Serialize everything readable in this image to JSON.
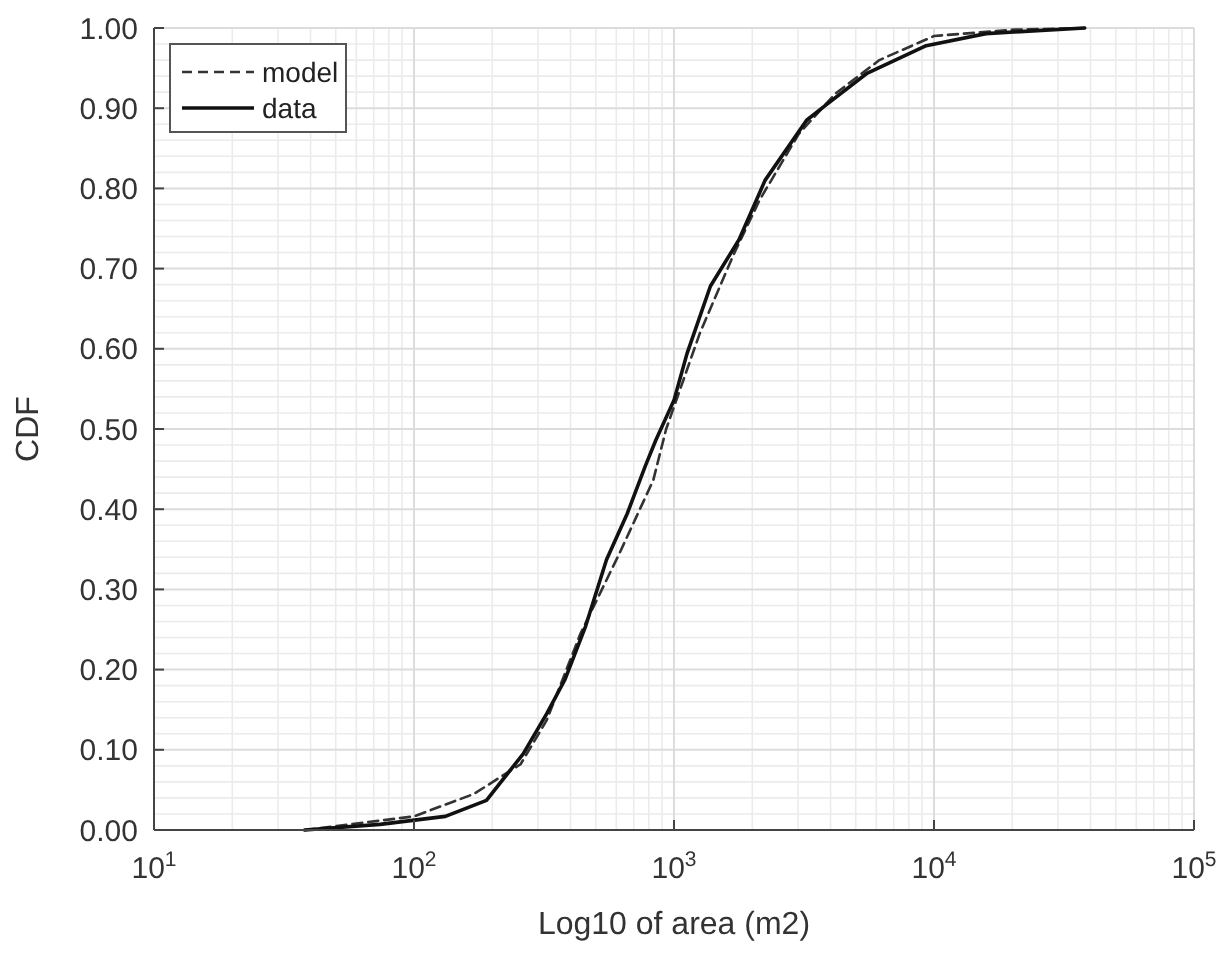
{
  "chart_data": {
    "type": "line",
    "xlabel": "Log10 of area (m2)",
    "ylabel": "CDF",
    "log": "x",
    "grid": true,
    "legend": "top left",
    "xlim": [
      10,
      100000
    ],
    "xticks": [
      {
        "value": 10,
        "label": "10$^{1}$"
      },
      {
        "value": 100,
        "label": "10$^{2}$"
      },
      {
        "value": 1000,
        "label": "10$^{3}$"
      },
      {
        "value": 10000,
        "label": "10$^{4}$"
      },
      {
        "value": 100000,
        "label": "10$^{5}$"
      }
    ],
    "ylim": [
      0,
      1
    ],
    "yticks": [
      {
        "value": 0,
        "label": "0.00"
      },
      {
        "value": 0.1,
        "label": "0.10"
      },
      {
        "value": 0.2,
        "label": "0.20"
      },
      {
        "value": 0.3,
        "label": "0.30"
      },
      {
        "value": 0.4,
        "label": "0.40"
      },
      {
        "value": 0.5,
        "label": "0.50"
      },
      {
        "value": 0.6,
        "label": "0.60"
      },
      {
        "value": 0.7,
        "label": "0.70"
      },
      {
        "value": 0.8,
        "label": "0.80"
      },
      {
        "value": 0.9,
        "label": "0.90"
      },
      {
        "value": 1,
        "label": "1.00"
      }
    ],
    "series": [
      {
        "name": "model",
        "color": "#333333",
        "line_style": "dashed",
        "x": [
          38,
          100,
          170,
          257,
          324,
          437,
          617,
          832,
          933,
          1259,
          1698,
          2138,
          3020,
          4169,
          6166,
          10000,
          20400,
          38000
        ],
        "values": [
          0,
          0.017,
          0.045,
          0.082,
          0.137,
          0.245,
          0.345,
          0.436,
          0.5,
          0.62,
          0.718,
          0.786,
          0.868,
          0.918,
          0.96,
          0.99,
          0.998,
          1
        ]
      },
      {
        "name": "data",
        "color": "#111111",
        "line_style": "solid",
        "x": [
          38,
          74,
          132,
          190,
          263,
          324,
          380,
          457,
          550,
          660,
          776,
          851,
          1000,
          1122,
          1380,
          1778,
          2239,
          3236,
          3802,
          5495,
          9333,
          15850,
          38000
        ],
        "values": [
          0,
          0.007,
          0.017,
          0.037,
          0.095,
          0.145,
          0.187,
          0.254,
          0.337,
          0.394,
          0.454,
          0.486,
          0.536,
          0.594,
          0.678,
          0.736,
          0.81,
          0.885,
          0.903,
          0.943,
          0.978,
          0.993,
          1
        ]
      }
    ]
  }
}
